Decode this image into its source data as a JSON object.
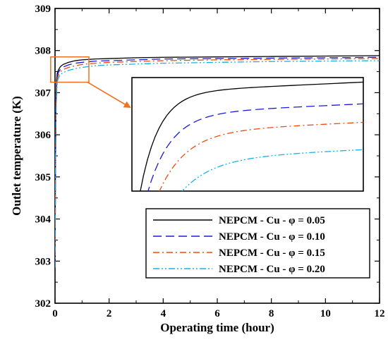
{
  "chart_data": {
    "type": "line",
    "xlabel": "Operating time (hour)",
    "ylabel": "Outlet temperature (K)",
    "xlim": [
      0,
      12
    ],
    "ylim": [
      302,
      309
    ],
    "xticks": [
      0,
      2,
      4,
      6,
      8,
      10,
      12
    ],
    "yticks": [
      302,
      303,
      304,
      305,
      306,
      307,
      308,
      309
    ],
    "grid": false,
    "legend_position": "bottom-right",
    "series": [
      {
        "name": "NEPCM - Cu - φ = 0.05",
        "color": "#000000",
        "dash": "solid",
        "x": [
          0,
          0.02,
          0.04,
          0.06,
          0.08,
          0.1,
          0.15,
          0.2,
          0.3,
          0.5,
          0.75,
          1.0,
          1.5,
          2,
          3,
          4,
          6,
          8,
          10,
          12
        ],
        "y": [
          302.85,
          305.5,
          306.9,
          307.3,
          307.45,
          307.5,
          307.57,
          307.62,
          307.67,
          307.72,
          307.76,
          307.78,
          307.8,
          307.81,
          307.83,
          307.84,
          307.85,
          307.86,
          307.87,
          307.88
        ]
      },
      {
        "name": "NEPCM - Cu - φ = 0.10",
        "color": "#1a1adb",
        "dash": "long-dash",
        "x": [
          0,
          0.02,
          0.04,
          0.06,
          0.08,
          0.1,
          0.15,
          0.2,
          0.3,
          0.5,
          0.75,
          1.0,
          1.5,
          2,
          3,
          4,
          6,
          8,
          10,
          12
        ],
        "y": [
          302.85,
          305.4,
          306.8,
          307.2,
          307.38,
          307.44,
          307.51,
          307.56,
          307.61,
          307.66,
          307.7,
          307.72,
          307.75,
          307.76,
          307.78,
          307.8,
          307.81,
          307.82,
          307.83,
          307.84
        ]
      },
      {
        "name": "NEPCM - Cu - φ = 0.15",
        "color": "#f04a0c",
        "dash": "dash-dot",
        "x": [
          0,
          0.02,
          0.04,
          0.06,
          0.08,
          0.1,
          0.15,
          0.2,
          0.3,
          0.5,
          0.75,
          1.0,
          1.5,
          2,
          3,
          4,
          6,
          8,
          10,
          12
        ],
        "y": [
          302.85,
          305.3,
          306.7,
          307.1,
          307.3,
          307.37,
          307.45,
          307.5,
          307.55,
          307.6,
          307.64,
          307.67,
          307.7,
          307.72,
          307.74,
          307.76,
          307.78,
          307.79,
          307.8,
          307.81
        ]
      },
      {
        "name": "NEPCM - Cu - φ = 0.20",
        "color": "#15b0e8",
        "dash": "dash-dot-dot",
        "x": [
          0,
          0.02,
          0.04,
          0.06,
          0.08,
          0.1,
          0.15,
          0.2,
          0.3,
          0.5,
          0.75,
          1.0,
          1.5,
          2,
          3,
          4,
          6,
          8,
          10,
          12
        ],
        "y": [
          302.85,
          305.2,
          306.6,
          307.0,
          307.22,
          307.3,
          307.38,
          307.43,
          307.48,
          307.53,
          307.57,
          307.6,
          307.64,
          307.66,
          307.68,
          307.7,
          307.72,
          307.74,
          307.75,
          307.76
        ]
      }
    ],
    "inset": {
      "zoom_box_color": "#f07020",
      "xlim": [
        0.1,
        1.2
      ],
      "ylim": [
        307.45,
        307.8
      ]
    }
  }
}
